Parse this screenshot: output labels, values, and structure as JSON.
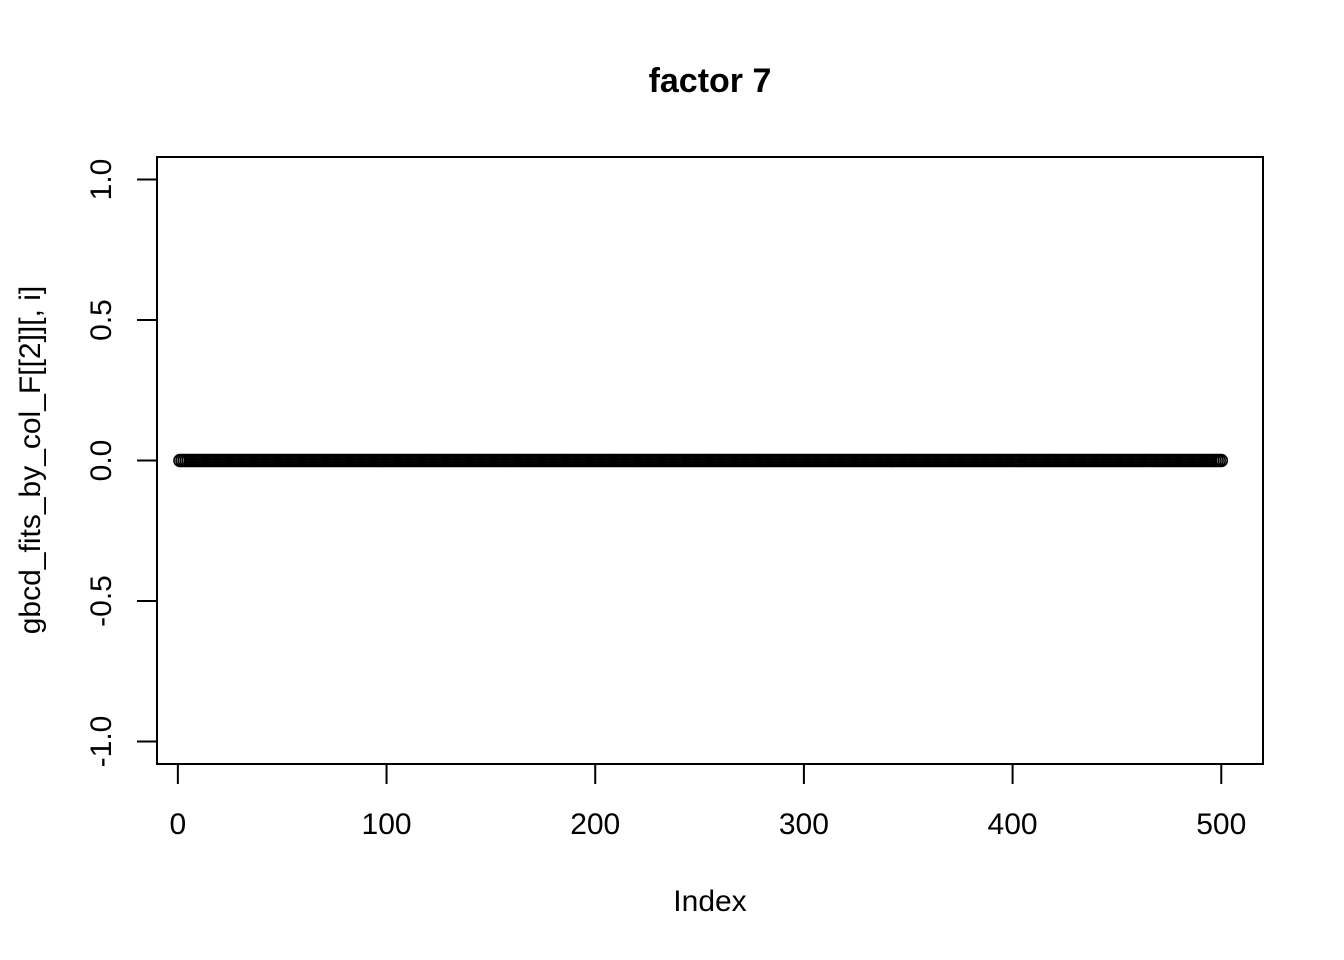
{
  "chart_data": {
    "type": "scatter",
    "title": "factor 7",
    "xlabel": "Index",
    "ylabel": "gbcd_fits_by_col_F[[2]][, i]",
    "xlim": [
      -10,
      520
    ],
    "ylim": [
      -1.08,
      1.08
    ],
    "x_ticks": [
      0,
      100,
      200,
      300,
      400,
      500
    ],
    "x_tick_labels": [
      "0",
      "100",
      "200",
      "300",
      "400",
      "500"
    ],
    "y_ticks": [
      -1.0,
      -0.5,
      0.0,
      0.5,
      1.0
    ],
    "y_tick_labels": [
      "-1.0",
      "-0.5",
      "0.0",
      "0.5",
      "1.0"
    ],
    "point_count": 500,
    "x_start": 1,
    "x_step": 1,
    "y_constant": 0.0,
    "marker": "open-circle",
    "marker_color": "#000000",
    "grid": false,
    "legend": "none"
  }
}
